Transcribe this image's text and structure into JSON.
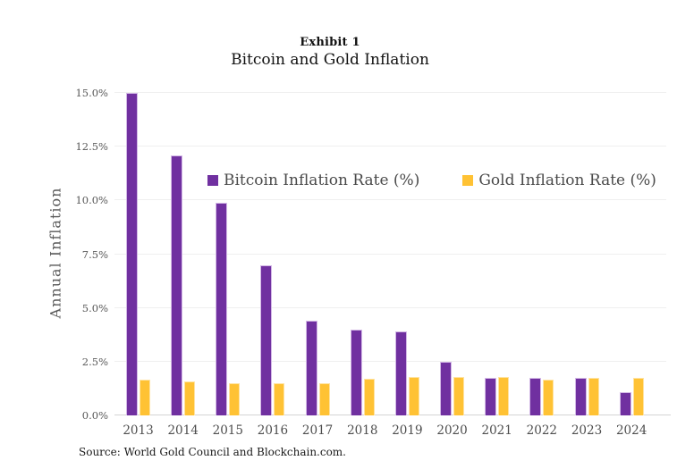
{
  "header": {
    "exhibit_label": "Exhibit 1",
    "title": "Bitcoin and Gold Inflation"
  },
  "chart_data": {
    "type": "bar",
    "title": "Bitcoin and Gold Inflation",
    "xlabel": "",
    "ylabel": "Annual Inflation",
    "categories": [
      "2013",
      "2014",
      "2015",
      "2016",
      "2017",
      "2018",
      "2019",
      "2020",
      "2021",
      "2022",
      "2023",
      "2024"
    ],
    "series": [
      {
        "name": "Bitcoin Inflation Rate (%)",
        "color": "#7030A0",
        "edge_color": "#d3b8e6",
        "values": [
          15.0,
          12.1,
          9.9,
          7.0,
          4.4,
          4.0,
          3.9,
          2.5,
          1.75,
          1.75,
          1.73,
          1.1
        ]
      },
      {
        "name": "Gold Inflation Rate (%)",
        "color": "#FFC234",
        "edge_color": "#ffe3a1",
        "values": [
          1.65,
          1.6,
          1.5,
          1.5,
          1.5,
          1.7,
          1.8,
          1.8,
          1.8,
          1.65,
          1.73,
          1.75
        ]
      }
    ],
    "ylim": [
      0,
      15
    ],
    "yticks": [
      {
        "value": 0,
        "label": "0.0%"
      },
      {
        "value": 2.5,
        "label": "2.5%"
      },
      {
        "value": 5,
        "label": "5.0%"
      },
      {
        "value": 7.5,
        "label": "7.5%"
      },
      {
        "value": 10,
        "label": "10.0%"
      },
      {
        "value": 12.5,
        "label": "12.5%"
      },
      {
        "value": 15,
        "label": "15.0%"
      }
    ],
    "grid": "horizontal",
    "legend_position": "inside-upper-left"
  },
  "footer": {
    "source": "Source: World Gold Council and Blockchain.com."
  },
  "colors": {
    "bitcoin": "#7030A0",
    "gold": "#FFC234",
    "gridline": "#efefef",
    "axis_line": "#d4d4d4",
    "tick_text": "#595959",
    "legend_text": "#4a4a4a",
    "title_text": "#111111",
    "background": "#ffffff"
  }
}
